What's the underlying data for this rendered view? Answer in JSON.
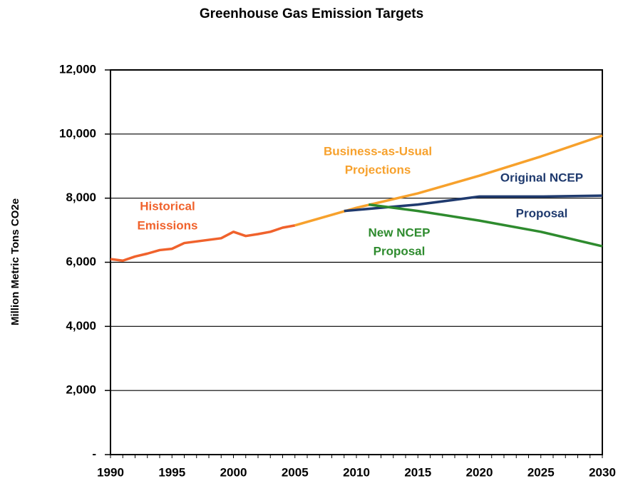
{
  "chart_data": {
    "type": "line",
    "title": "Greenhouse Gas Emission Targets",
    "y_label": "Million Metric Tons CO2e",
    "xlim": [
      1990,
      2030
    ],
    "xticks": [
      1990,
      1995,
      2000,
      2005,
      2010,
      2015,
      2020,
      2025,
      2030
    ],
    "ylim": [
      0,
      12000
    ],
    "yticks": [
      {
        "value": 0,
        "label": "-"
      },
      {
        "value": 2000,
        "label": "2,000"
      },
      {
        "value": 4000,
        "label": "4,000"
      },
      {
        "value": 6000,
        "label": "6,000"
      },
      {
        "value": 8000,
        "label": "8,000"
      },
      {
        "value": 10000,
        "label": "10,000"
      },
      {
        "value": 12000,
        "label": "12,000"
      }
    ],
    "grid": true,
    "series": [
      {
        "name": "Historical Emissions",
        "color": "#f0622c",
        "x": [
          1990,
          1991,
          1992,
          1993,
          1994,
          1995,
          1996,
          1997,
          1998,
          1999,
          2000,
          2001,
          2002,
          2003,
          2004,
          2005
        ],
        "values": [
          6100,
          6050,
          6180,
          6270,
          6380,
          6420,
          6600,
          6650,
          6700,
          6750,
          6950,
          6820,
          6880,
          6950,
          7080,
          7150
        ]
      },
      {
        "name": "Business-as-Usual Projections",
        "color": "#f7a12c",
        "x": [
          2005,
          2010,
          2015,
          2020,
          2025,
          2030
        ],
        "values": [
          7150,
          7700,
          8150,
          8700,
          9300,
          9950
        ]
      },
      {
        "name": "Original NCEP Proposal",
        "color": "#1f3a6e",
        "x": [
          2009,
          2012,
          2015,
          2020,
          2025,
          2030
        ],
        "values": [
          7600,
          7700,
          7800,
          8050,
          8050,
          8080
        ]
      },
      {
        "name": "New NCEP Proposal",
        "color": "#2e8b2e",
        "x": [
          2011,
          2015,
          2020,
          2025,
          2030
        ],
        "values": [
          7800,
          7600,
          7300,
          6950,
          6500
        ]
      }
    ],
    "annotations": [
      {
        "lines": [
          "Historical",
          "Emissions"
        ],
        "color": "#f0622c"
      },
      {
        "lines": [
          "Business-as-Usual",
          "Projections"
        ],
        "color": "#f7a12c"
      },
      {
        "lines": [
          "Original NCEP",
          "Proposal"
        ],
        "color": "#1f3a6e"
      },
      {
        "lines": [
          "New NCEP",
          "Proposal"
        ],
        "color": "#2e8b2e"
      }
    ]
  }
}
